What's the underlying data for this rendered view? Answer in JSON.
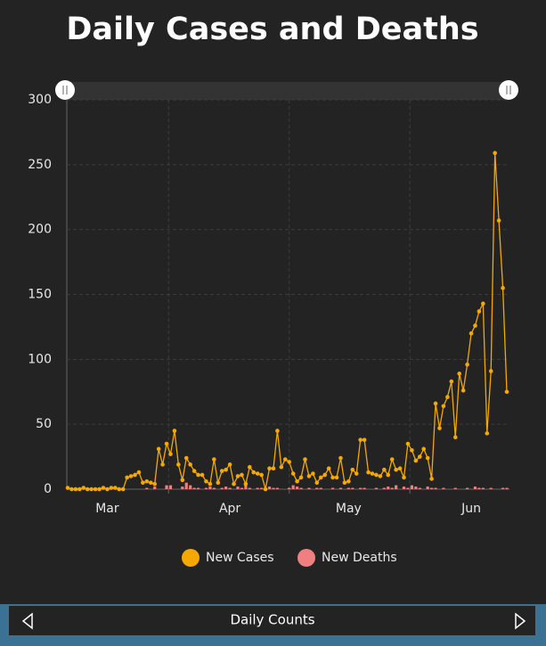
{
  "chart_data": {
    "type": "line",
    "title": "Daily Cases and Deaths",
    "categories": [
      null,
      null,
      null,
      null,
      null,
      null,
      null,
      null,
      null,
      null,
      "Mar",
      null,
      null,
      null,
      null,
      null,
      null,
      null,
      null,
      null,
      null,
      null,
      null,
      null,
      null,
      null,
      null,
      null,
      null,
      null,
      null,
      null,
      null,
      null,
      null,
      null,
      null,
      null,
      null,
      null,
      null,
      "Apr",
      null,
      null,
      null,
      null,
      null,
      null,
      null,
      null,
      null,
      null,
      null,
      null,
      null,
      null,
      null,
      null,
      null,
      null,
      null,
      null,
      null,
      null,
      null,
      null,
      null,
      null,
      null,
      null,
      null,
      "May",
      null,
      null,
      null,
      null,
      null,
      null,
      null,
      null,
      null,
      null,
      null,
      null,
      null,
      null,
      null,
      null,
      null,
      null,
      null,
      null,
      null,
      null,
      null,
      null,
      null,
      null,
      null,
      null,
      null,
      null,
      "Jun",
      null,
      null,
      null,
      null,
      null,
      null,
      null,
      null,
      null
    ],
    "series": [
      {
        "name": "New Cases",
        "color": "#f5a800",
        "values": [
          1,
          0,
          0,
          0,
          1,
          0,
          0,
          0,
          0,
          1,
          0,
          1,
          1,
          0,
          0,
          9,
          10,
          11,
          13,
          5,
          6,
          5,
          4,
          31,
          19,
          35,
          27,
          45,
          19,
          7,
          24,
          19,
          14,
          11,
          11,
          6,
          4,
          23,
          5,
          14,
          15,
          19,
          4,
          10,
          11,
          4,
          17,
          13,
          12,
          11,
          0,
          16,
          16,
          45,
          17,
          23,
          21,
          12,
          6,
          9,
          23,
          10,
          12,
          5,
          9,
          11,
          16,
          9,
          9,
          24,
          5,
          6,
          15,
          12,
          38,
          38,
          13,
          12,
          11,
          10,
          15,
          11,
          23,
          15,
          16,
          9,
          35,
          30,
          22,
          25,
          31,
          24,
          8,
          66,
          47,
          64,
          71,
          83,
          40,
          89,
          76,
          96,
          120,
          126,
          137,
          143,
          43,
          91,
          259,
          207,
          155,
          75
        ]
      },
      {
        "name": "New Deaths",
        "color": "#f08080",
        "values": [
          0,
          0,
          0,
          0,
          0,
          0,
          0,
          0,
          0,
          0,
          0,
          0,
          0,
          0,
          0,
          0,
          0,
          0,
          0,
          0,
          1,
          0,
          2,
          0,
          0,
          3,
          3,
          0,
          0,
          2,
          5,
          3,
          1,
          1,
          0,
          1,
          2,
          1,
          0,
          1,
          2,
          1,
          0,
          2,
          1,
          3,
          1,
          0,
          1,
          1,
          0,
          2,
          1,
          1,
          0,
          0,
          1,
          3,
          2,
          1,
          0,
          1,
          0,
          1,
          1,
          0,
          0,
          1,
          0,
          1,
          0,
          1,
          1,
          0,
          1,
          1,
          0,
          0,
          1,
          0,
          1,
          2,
          1,
          3,
          0,
          2,
          1,
          3,
          2,
          1,
          0,
          2,
          1,
          1,
          0,
          1,
          0,
          0,
          1,
          0,
          0,
          1,
          0,
          2,
          1,
          1,
          0,
          1,
          0,
          0,
          1,
          1
        ]
      }
    ],
    "ylim": [
      0,
      300
    ],
    "yticks": [
      0,
      50,
      100,
      150,
      200,
      250,
      300
    ],
    "grid": true
  },
  "footer": {
    "label": "Daily Counts"
  }
}
